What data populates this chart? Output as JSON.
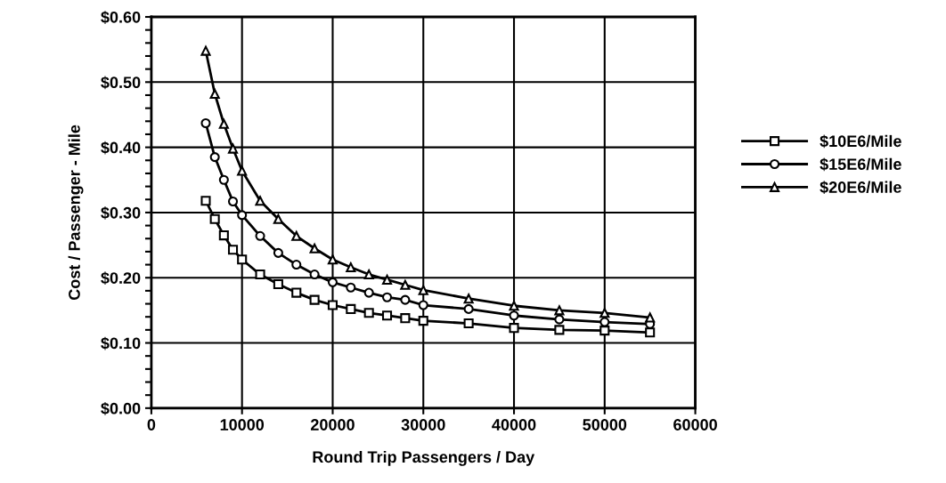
{
  "chart_data": {
    "type": "line",
    "xlabel": "Round Trip Passengers / Day",
    "ylabel": "Cost / Passenger - Mile",
    "x": [
      6000,
      7000,
      8000,
      9000,
      10000,
      12000,
      14000,
      16000,
      18000,
      20000,
      22000,
      24000,
      26000,
      28000,
      30000,
      35000,
      40000,
      45000,
      50000,
      55000
    ],
    "series": [
      {
        "name": "$10E6/Mile",
        "color": "#000000",
        "marker": "square",
        "values": [
          0.318,
          0.29,
          0.265,
          0.243,
          0.228,
          0.205,
          0.19,
          0.177,
          0.166,
          0.158,
          0.152,
          0.146,
          0.142,
          0.138,
          0.134,
          0.13,
          0.123,
          0.12,
          0.119,
          0.116
        ]
      },
      {
        "name": "$15E6/Mile",
        "color": "#000000",
        "marker": "circle",
        "values": [
          0.437,
          0.385,
          0.35,
          0.317,
          0.296,
          0.264,
          0.238,
          0.22,
          0.205,
          0.193,
          0.185,
          0.177,
          0.17,
          0.166,
          0.158,
          0.152,
          0.142,
          0.136,
          0.132,
          0.129
        ]
      },
      {
        "name": "$20E6/Mile",
        "color": "#000000",
        "marker": "triangle",
        "values": [
          0.548,
          0.482,
          0.436,
          0.398,
          0.364,
          0.318,
          0.29,
          0.264,
          0.245,
          0.228,
          0.216,
          0.205,
          0.197,
          0.189,
          0.181,
          0.168,
          0.157,
          0.15,
          0.146,
          0.139
        ]
      }
    ],
    "xlim": [
      0,
      60000
    ],
    "xticks": [
      0,
      10000,
      20000,
      30000,
      40000,
      50000,
      60000
    ],
    "ylim": [
      0,
      0.6
    ],
    "yticks": [
      {
        "value": 0,
        "label": "$0.00"
      },
      {
        "value": 0.02,
        "label": null
      },
      {
        "value": 0.04,
        "label": null
      },
      {
        "value": 0.06,
        "label": null
      },
      {
        "value": 0.08,
        "label": null
      },
      {
        "value": 0.1,
        "label": "$0.10"
      },
      {
        "value": 0.12,
        "label": null
      },
      {
        "value": 0.14,
        "label": null
      },
      {
        "value": 0.16,
        "label": null
      },
      {
        "value": 0.18,
        "label": null
      },
      {
        "value": 0.2,
        "label": "$0.20"
      },
      {
        "value": 0.22,
        "label": null
      },
      {
        "value": 0.24,
        "label": null
      },
      {
        "value": 0.26,
        "label": null
      },
      {
        "value": 0.28,
        "label": null
      },
      {
        "value": 0.3,
        "label": "$0.30"
      },
      {
        "value": 0.32,
        "label": null
      },
      {
        "value": 0.34,
        "label": null
      },
      {
        "value": 0.36,
        "label": null
      },
      {
        "value": 0.38,
        "label": null
      },
      {
        "value": 0.4,
        "label": "$0.40"
      },
      {
        "value": 0.42,
        "label": null
      },
      {
        "value": 0.44,
        "label": null
      },
      {
        "value": 0.46,
        "label": null
      },
      {
        "value": 0.48,
        "label": null
      },
      {
        "value": 0.5,
        "label": "$0.50"
      },
      {
        "value": 0.52,
        "label": null
      },
      {
        "value": 0.54,
        "label": null
      },
      {
        "value": 0.56,
        "label": null
      },
      {
        "value": 0.58,
        "label": null
      },
      {
        "value": 0.6,
        "label": "$0.60"
      }
    ],
    "grid": true,
    "legend": "right",
    "line_style": "solid"
  }
}
